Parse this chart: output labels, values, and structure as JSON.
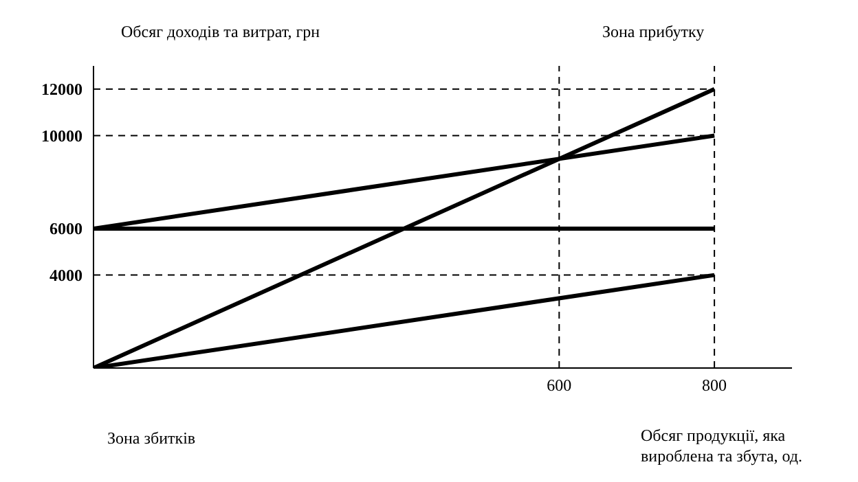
{
  "chart_data": {
    "type": "line",
    "ylabel": "Обсяг доходів та витрат, грн",
    "xlabel": "Обсяг продукції, яка вироблена та збута, од.",
    "x": [
      0,
      800
    ],
    "series": [
      {
        "color": "#000000",
        "values": [
          0,
          12000
        ]
      },
      {
        "color": "#000000",
        "values": [
          6000,
          10000
        ]
      },
      {
        "color": "#000000",
        "values": [
          0,
          4000
        ]
      },
      {
        "color": "#000000",
        "values": [
          6000,
          6000
        ]
      }
    ],
    "xlim": [
      0,
      900
    ],
    "xticks": [
      600,
      800
    ],
    "ylim": [
      0,
      13000
    ],
    "yticks": [
      4000,
      6000,
      10000,
      12000
    ],
    "ref_lines": [
      {
        "axis": "x",
        "value": 600,
        "line_style": "dashed"
      },
      {
        "axis": "x",
        "value": 800,
        "line_style": "dashed"
      },
      {
        "axis": "y",
        "value": 12000,
        "line_style": "dashed"
      },
      {
        "axis": "y",
        "value": 10000,
        "line_style": "dashed"
      },
      {
        "axis": "y",
        "value": 4000,
        "line_style": "dashed"
      }
    ],
    "annotations": [
      "Зона прибутку",
      "Зона збитків"
    ],
    "marker": "none",
    "line_style": "solid"
  }
}
